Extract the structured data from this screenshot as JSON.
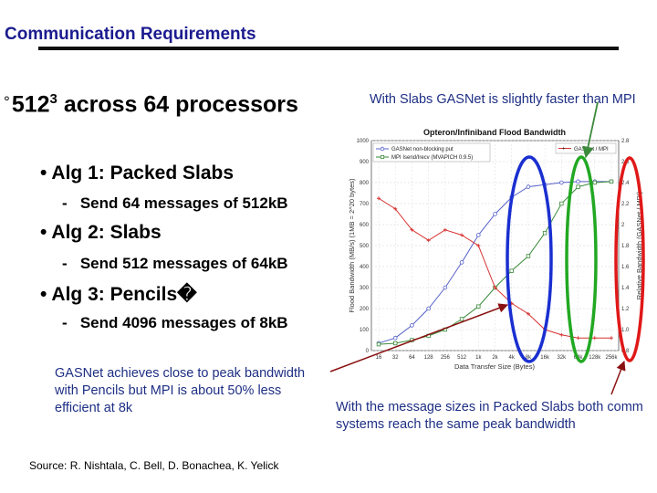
{
  "slide": {
    "title": "Communication Requirements",
    "headline": {
      "marker": "°",
      "base": "512",
      "exponent": "3",
      "rest": " across 64 processors"
    },
    "bullets": [
      {
        "marker": "•",
        "text": "Alg 1: Packed Slabs",
        "sub": "Send 64 messages of 512kB"
      },
      {
        "marker": "•",
        "text": "Alg 2: Slabs",
        "sub": "Send 512 messages of 64kB"
      },
      {
        "marker": "•",
        "text": "Alg 3: Pencils",
        "sub": "Send 4096 messages of 8kB"
      }
    ],
    "sub_marker": "-",
    "pencils_glyph": "�",
    "note_top": "With Slabs GASNet is slightly faster than MPI",
    "note_left": "GASNet achieves close to peak bandwidth with Pencils but MPI is about 50% less efficient at 8k",
    "note_right": "With the message sizes in Packed Slabs both comm systems reach the same peak bandwidth",
    "source": "Source:  R. Nishtala, C. Bell, D. Bonachea, K. Yelick",
    "colors": {
      "title": "#1b1b8f",
      "notes": "#1e2f84",
      "highlight_blue": "#1a2fd0",
      "highlight_green": "#22a822",
      "highlight_red": "#e01818",
      "arrow": "#8a1010",
      "arrow_green": "#3c8a3c"
    }
  },
  "chart_data": {
    "type": "line",
    "title": "Opteron/Infiniband Flood Bandwidth",
    "xlabel": "Data Transfer Size (Bytes)",
    "ylabel": "Flood Bandwidth (MB/s) (1MB = 2^20 bytes)",
    "y2label": "Relative Bandwidth (GASNet / MPI)",
    "categories": [
      "16",
      "32",
      "64",
      "128",
      "256",
      "512",
      "1k",
      "2k",
      "4k",
      "8k",
      "16k",
      "32k",
      "64k",
      "128k",
      "256k"
    ],
    "ylim": [
      0,
      1000
    ],
    "yticks": [
      0,
      100,
      200,
      300,
      400,
      500,
      600,
      700,
      800,
      900,
      1000
    ],
    "y2lim": [
      0.8,
      2.8
    ],
    "y2ticks": [
      "0.8",
      "1.0",
      "1.2",
      "1.4",
      "1.6",
      "1.8",
      "2",
      "2.2",
      "2.4",
      "2.6",
      "2.8"
    ],
    "legend": "top",
    "series": [
      {
        "name": "GASNet non-blocking put",
        "axis": "left",
        "color": "#5560c8",
        "marker": "circle",
        "values": [
          35,
          60,
          120,
          200,
          300,
          420,
          550,
          650,
          730,
          780,
          790,
          800,
          805,
          805,
          805
        ]
      },
      {
        "name": "MPI Isend/Irecv (MVAPICH 0.9.5)",
        "axis": "left",
        "color": "#3a8a3a",
        "marker": "square",
        "values": [
          30,
          35,
          50,
          70,
          100,
          150,
          210,
          300,
          380,
          450,
          560,
          700,
          780,
          800,
          805
        ]
      },
      {
        "name": "GASNet / MPI",
        "axis": "right",
        "color": "#d83030",
        "marker": "plus",
        "values": [
          2.25,
          2.15,
          1.95,
          1.85,
          1.95,
          1.9,
          1.8,
          1.4,
          1.25,
          1.15,
          1.0,
          0.95,
          0.92,
          0.92,
          0.92
        ]
      }
    ]
  }
}
